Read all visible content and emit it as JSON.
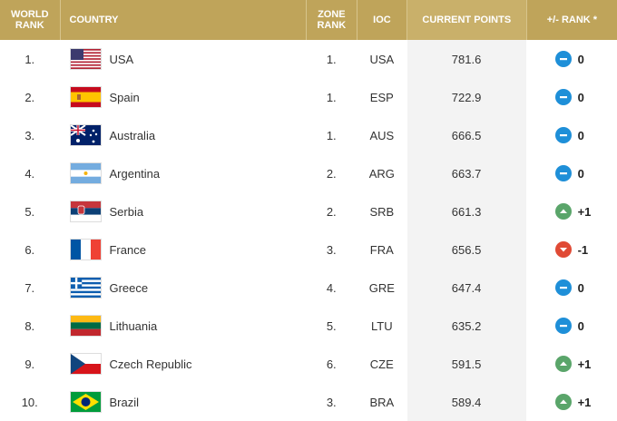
{
  "headers": {
    "world_rank": "WORLD RANK",
    "country": "COUNTRY",
    "zone_rank": "ZONE RANK",
    "ioc": "IOC",
    "current_points": "CURRENT POINTS",
    "rank_change": "+/- RANK *"
  },
  "rows": [
    {
      "rank": "1.",
      "country": "USA",
      "flag": "usa-flag",
      "zone": "1.",
      "ioc": "USA",
      "points": "781.6",
      "change": "0",
      "trend": "same"
    },
    {
      "rank": "2.",
      "country": "Spain",
      "flag": "spain-flag",
      "zone": "1.",
      "ioc": "ESP",
      "points": "722.9",
      "change": "0",
      "trend": "same"
    },
    {
      "rank": "3.",
      "country": "Australia",
      "flag": "australia-flag",
      "zone": "1.",
      "ioc": "AUS",
      "points": "666.5",
      "change": "0",
      "trend": "same"
    },
    {
      "rank": "4.",
      "country": "Argentina",
      "flag": "argentina-flag",
      "zone": "2.",
      "ioc": "ARG",
      "points": "663.7",
      "change": "0",
      "trend": "same"
    },
    {
      "rank": "5.",
      "country": "Serbia",
      "flag": "serbia-flag",
      "zone": "2.",
      "ioc": "SRB",
      "points": "661.3",
      "change": "+1",
      "trend": "up"
    },
    {
      "rank": "6.",
      "country": "France",
      "flag": "france-flag",
      "zone": "3.",
      "ioc": "FRA",
      "points": "656.5",
      "change": "-1",
      "trend": "down"
    },
    {
      "rank": "7.",
      "country": "Greece",
      "flag": "greece-flag",
      "zone": "4.",
      "ioc": "GRE",
      "points": "647.4",
      "change": "0",
      "trend": "same"
    },
    {
      "rank": "8.",
      "country": "Lithuania",
      "flag": "lithuania-flag",
      "zone": "5.",
      "ioc": "LTU",
      "points": "635.2",
      "change": "0",
      "trend": "same"
    },
    {
      "rank": "9.",
      "country": "Czech Republic",
      "flag": "czech-flag",
      "zone": "6.",
      "ioc": "CZE",
      "points": "591.5",
      "change": "+1",
      "trend": "up"
    },
    {
      "rank": "10.",
      "country": "Brazil",
      "flag": "brazil-flag",
      "zone": "3.",
      "ioc": "BRA",
      "points": "589.4",
      "change": "+1",
      "trend": "up"
    }
  ],
  "colors": {
    "header": "#bfa45a",
    "same": "#1e8fd8",
    "up": "#5aa56a",
    "down": "#e04a35"
  }
}
